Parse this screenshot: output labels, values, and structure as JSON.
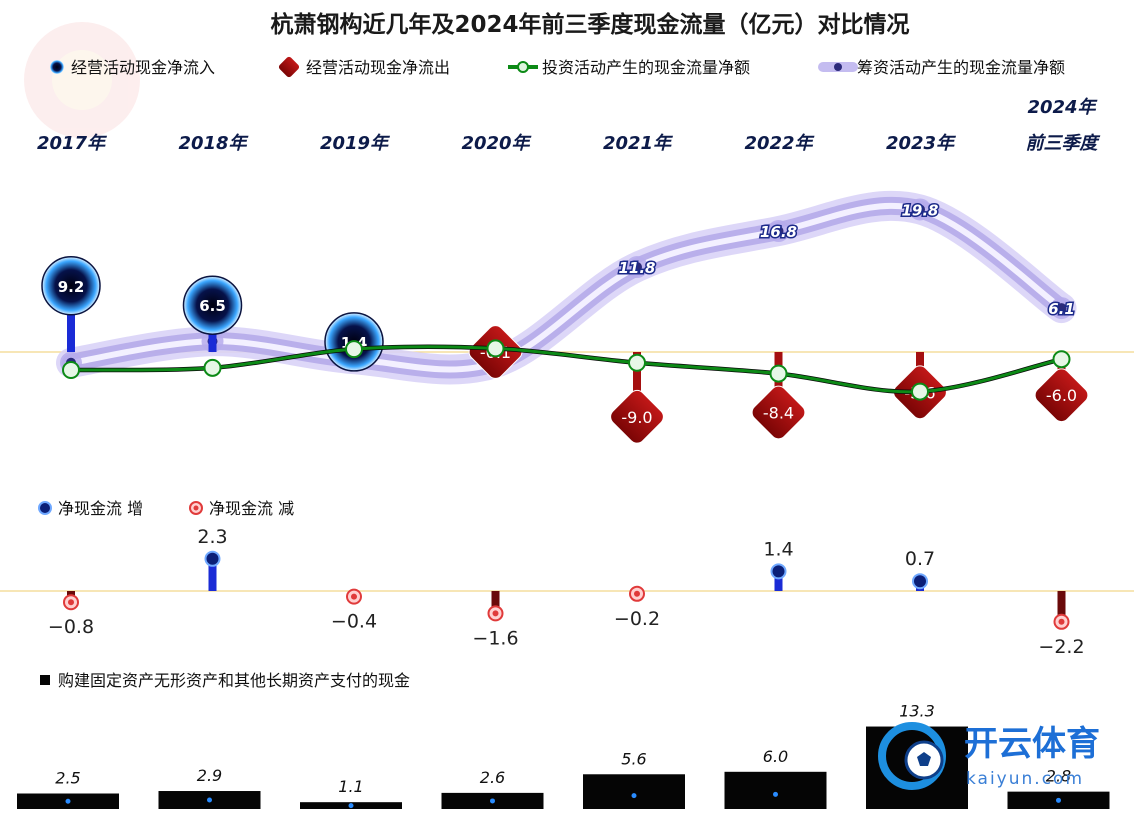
{
  "title": "杭萧钢构近几年及2024年前三季度现金流量（亿元）对比情况",
  "legend": [
    {
      "label": "经营活动现金净流入",
      "color": "#1a2bd6"
    },
    {
      "label": "经营活动现金净流出",
      "color": "#a50f0f"
    },
    {
      "label": "投资活动产生的现金流量净额",
      "color": "#0c8a16"
    },
    {
      "label": "筹资活动产生的现金流量净额",
      "color": "#b9b0e8"
    }
  ],
  "net_legend": [
    {
      "label": "净现金流  增"
    },
    {
      "label": "净现金流  减"
    }
  ],
  "capex_legend": "购建固定资产无形资产和其他长期资产支付的现金",
  "logo": {
    "text": "开云体育",
    "sub": "kaiyun.com"
  },
  "chart_data": {
    "type": "combo",
    "categories": [
      "2017年",
      "2018年",
      "2019年",
      "2020年",
      "2021年",
      "2022年",
      "2023年",
      "2024年\n前三季度"
    ],
    "category_lines": [
      [
        "2017年"
      ],
      [
        "2018年"
      ],
      [
        "2019年"
      ],
      [
        "2020年"
      ],
      [
        "2021年"
      ],
      [
        "2022年"
      ],
      [
        "2023年"
      ],
      [
        "2024年",
        "前三季度"
      ]
    ],
    "operating_cash_flow": [
      9.2,
      6.5,
      1.4,
      -0.1,
      -9.0,
      -8.4,
      -5.6,
      -6.0
    ],
    "operating_labels": [
      "9.2",
      "6.5",
      "1.4",
      "-0.1",
      "-9.0",
      "-8.4",
      "-5.6",
      "-6.0"
    ],
    "investing_cash_flow": [
      -2.5,
      -2.2,
      0.4,
      0.5,
      -1.5,
      -3.0,
      -5.5,
      -1.0
    ],
    "financing_cash_flow": [
      -1.5,
      1.5,
      -1.0,
      -1.5,
      11.8,
      16.8,
      19.8,
      6.1
    ],
    "financing_labels": [
      "",
      "",
      "",
      "",
      "11.8",
      "16.8",
      "19.8",
      "6.1"
    ],
    "net_cash_flow": [
      -0.8,
      2.3,
      -0.4,
      -1.6,
      -0.2,
      1.4,
      0.7,
      -2.2
    ],
    "net_labels": [
      "−0.8",
      "2.3",
      "−0.4",
      "−1.6",
      "−0.2",
      "1.4",
      "0.7",
      "−2.2"
    ],
    "capex": [
      2.5,
      2.9,
      1.1,
      2.6,
      5.6,
      6.0,
      13.3,
      2.8
    ],
    "capex_labels": [
      "2.5",
      "2.9",
      "1.1",
      "2.6",
      "5.6",
      "6.0",
      "13.3",
      "2.8"
    ],
    "colors": {
      "inflow": "#1a2bd6",
      "outflow": "#a50f0f",
      "investing": "#0c8a16",
      "financing": "#c4bcf0",
      "net_increase": "#0b1f78",
      "net_decrease": "#e03a3a",
      "capex": "#050505",
      "zero_line": "#f2d78a"
    }
  }
}
